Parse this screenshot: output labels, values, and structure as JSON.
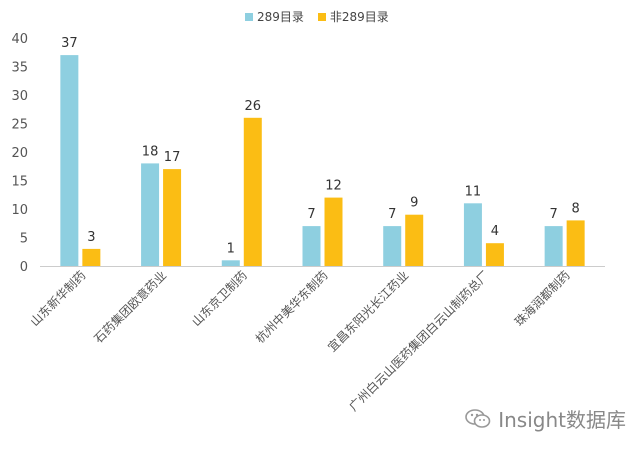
{
  "chart_data": {
    "type": "bar",
    "categories": [
      "山东新华制药",
      "石药集团欧意药业",
      "山东京卫制药",
      "杭州中美华东制药",
      "宜昌东阳光长江药业",
      "广州白云山医药集团白云山制药总厂",
      "珠海润都制药"
    ],
    "series": [
      {
        "name": "289目录",
        "values": [
          37,
          18,
          1,
          7,
          7,
          11,
          7
        ],
        "color": "#8ecfe0"
      },
      {
        "name": "非289目录",
        "values": [
          3,
          17,
          26,
          12,
          9,
          4,
          8
        ],
        "color": "#fbbd14"
      }
    ],
    "ylim": [
      0,
      40
    ],
    "yticks": [
      0,
      5,
      10,
      15,
      20,
      25,
      30,
      35,
      40
    ],
    "grid": false,
    "legend_position": "top-center"
  },
  "watermark": {
    "text": "Insight数据库",
    "icon": "wechat-icon"
  }
}
